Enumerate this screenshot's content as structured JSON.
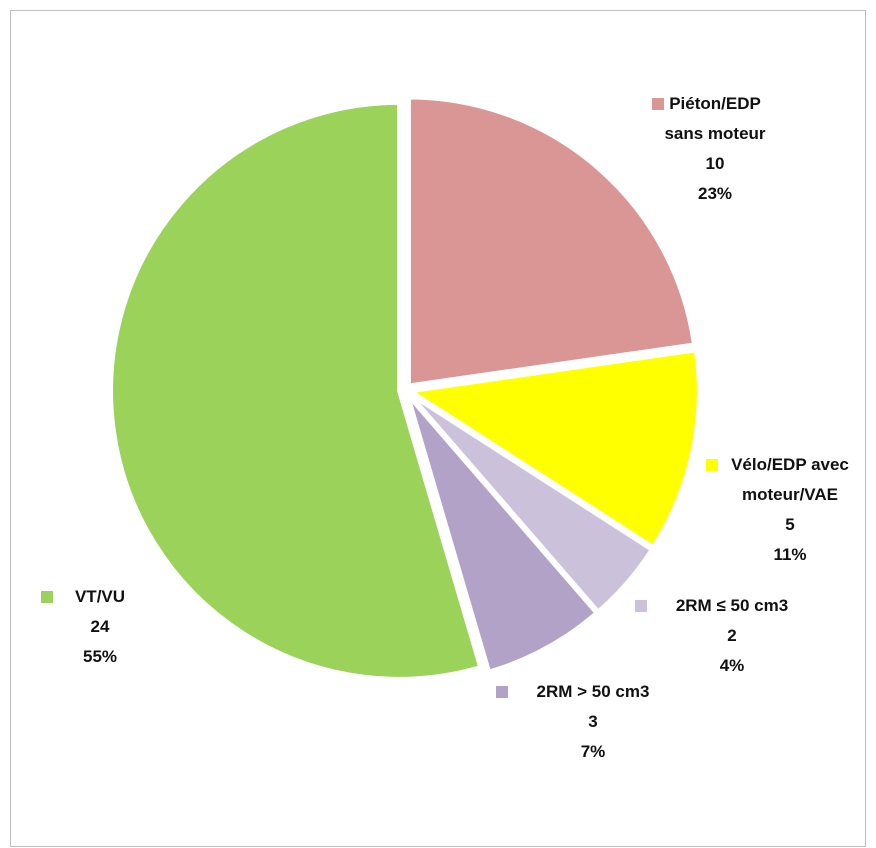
{
  "chart_data": {
    "type": "pie",
    "categories": [
      "Piéton/EDP sans moteur",
      "Vélo/EDP avec moteur/VAE",
      "2RM ≤ 50 cm3",
      "2RM > 50 cm3",
      "VT/VU"
    ],
    "values": [
      10,
      5,
      2,
      3,
      24
    ],
    "percent_labels": [
      "23%",
      "11%",
      "4%",
      "7%",
      "55%"
    ],
    "colors": [
      "#d99694",
      "#ffff00",
      "#ccc1da",
      "#b3a2c7",
      "#9bd35a"
    ]
  }
}
